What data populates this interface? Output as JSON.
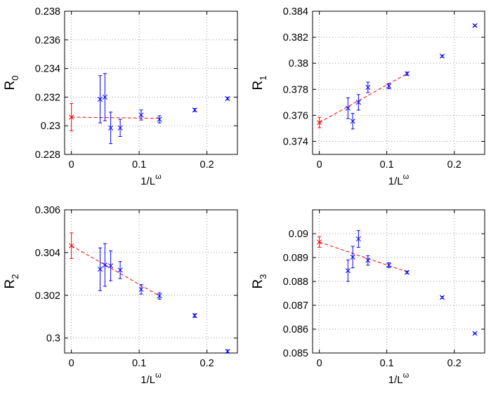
{
  "figure": {
    "background": "#ffffff"
  },
  "colors": {
    "data": "#0000ff",
    "extrapolation": "#ff0000",
    "fit": "#ff0000"
  },
  "chart_data": [
    {
      "type": "scatter",
      "ylabel_main": "R",
      "ylabel_sub": "0",
      "xlabel_main": "1/L",
      "xlabel_sup": "ω",
      "xlim": [
        -0.01,
        0.245
      ],
      "ylim": [
        0.228,
        0.238
      ],
      "xticks": [
        0,
        0.1,
        0.2
      ],
      "xtick_labels": [
        "0",
        "0.1",
        "0.2"
      ],
      "yticks": [
        0.228,
        0.23,
        0.232,
        0.234,
        0.236,
        0.238
      ],
      "ytick_labels": [
        "0.228",
        "0.23",
        "0.232",
        "0.234",
        "0.236",
        "0.238"
      ],
      "grid": true,
      "series": [
        {
          "name": "data",
          "marker": "x",
          "points": [
            {
              "x": 0.0424,
              "y": 0.23185,
              "err": 0.00165
            },
            {
              "x": 0.0495,
              "y": 0.232,
              "err": 0.00165
            },
            {
              "x": 0.058,
              "y": 0.22985,
              "err": 0.0011
            },
            {
              "x": 0.072,
              "y": 0.22985,
              "err": 0.0006
            },
            {
              "x": 0.103,
              "y": 0.23075,
              "err": 0.00035
            },
            {
              "x": 0.13,
              "y": 0.23045,
              "err": 0.00025
            },
            {
              "x": 0.182,
              "y": 0.2311,
              "err": 0.0001
            },
            {
              "x": 0.2305,
              "y": 0.2319,
              "err": 8e-05
            }
          ]
        },
        {
          "name": "extrapolation",
          "marker": "x",
          "points": [
            {
              "x": 0,
              "y": 0.2306,
              "err": 0.00095
            }
          ]
        }
      ],
      "fit_line": {
        "x": [
          0,
          0.13
        ],
        "y": [
          0.2306,
          0.23052
        ]
      }
    },
    {
      "type": "scatter",
      "ylabel_main": "R",
      "ylabel_sub": "1",
      "xlabel_main": "1/L",
      "xlabel_sup": "ω",
      "xlim": [
        -0.01,
        0.245
      ],
      "ylim": [
        0.373,
        0.384
      ],
      "xticks": [
        0,
        0.1,
        0.2
      ],
      "xtick_labels": [
        "0",
        "0.1",
        "0.2"
      ],
      "yticks": [
        0.374,
        0.376,
        0.378,
        0.38,
        0.382,
        0.384
      ],
      "ytick_labels": [
        "0.374",
        "0.376",
        "0.378",
        "0.38",
        "0.382",
        "0.384"
      ],
      "grid": true,
      "series": [
        {
          "name": "data",
          "marker": "x",
          "points": [
            {
              "x": 0.0424,
              "y": 0.37655,
              "err": 0.0008
            },
            {
              "x": 0.0495,
              "y": 0.37555,
              "err": 0.0006
            },
            {
              "x": 0.058,
              "y": 0.377,
              "err": 0.0006
            },
            {
              "x": 0.072,
              "y": 0.37815,
              "err": 0.0004
            },
            {
              "x": 0.103,
              "y": 0.37825,
              "err": 0.0002
            },
            {
              "x": 0.13,
              "y": 0.3792,
              "err": 0.00012
            },
            {
              "x": 0.182,
              "y": 0.38055,
              "err": 8e-05
            },
            {
              "x": 0.2305,
              "y": 0.3829,
              "err": 6e-05
            }
          ]
        },
        {
          "name": "extrapolation",
          "marker": "x",
          "points": [
            {
              "x": 0,
              "y": 0.37545,
              "err": 0.0004
            }
          ]
        }
      ],
      "fit_line": {
        "x": [
          0,
          0.13
        ],
        "y": [
          0.37545,
          0.3792
        ]
      }
    },
    {
      "type": "scatter",
      "ylabel_main": "R",
      "ylabel_sub": "2",
      "xlabel_main": "1/L",
      "xlabel_sup": "ω",
      "xlim": [
        -0.01,
        0.245
      ],
      "ylim": [
        0.2993,
        0.306
      ],
      "xticks": [
        0,
        0.1,
        0.2
      ],
      "xtick_labels": [
        "0",
        "0.1",
        "0.2"
      ],
      "yticks": [
        0.3,
        0.302,
        0.304,
        0.306
      ],
      "ytick_labels": [
        "0.3",
        "0.302",
        "0.304",
        "0.306"
      ],
      "grid": true,
      "series": [
        {
          "name": "data",
          "marker": "x",
          "points": [
            {
              "x": 0.0424,
              "y": 0.30322,
              "err": 0.001
            },
            {
              "x": 0.0495,
              "y": 0.30342,
              "err": 0.001
            },
            {
              "x": 0.058,
              "y": 0.30338,
              "err": 0.0007
            },
            {
              "x": 0.072,
              "y": 0.30318,
              "err": 0.0004
            },
            {
              "x": 0.103,
              "y": 0.30228,
              "err": 0.00022
            },
            {
              "x": 0.13,
              "y": 0.30197,
              "err": 0.00015
            },
            {
              "x": 0.182,
              "y": 0.30105,
              "err": 8e-05
            },
            {
              "x": 0.2305,
              "y": 0.29938,
              "err": 6e-05
            }
          ]
        },
        {
          "name": "extrapolation",
          "marker": "x",
          "points": [
            {
              "x": 0,
              "y": 0.30432,
              "err": 0.0006
            }
          ]
        }
      ],
      "fit_line": {
        "x": [
          0,
          0.13
        ],
        "y": [
          0.30432,
          0.30197
        ]
      }
    },
    {
      "type": "scatter",
      "ylabel_main": "R",
      "ylabel_sub": "3",
      "xlabel_main": "1/L",
      "xlabel_sup": "ω",
      "xlim": [
        -0.01,
        0.245
      ],
      "ylim": [
        0.085,
        0.091
      ],
      "xticks": [
        0,
        0.1,
        0.2
      ],
      "xtick_labels": [
        "0",
        "0.1",
        "0.2"
      ],
      "yticks": [
        0.085,
        0.086,
        0.087,
        0.088,
        0.089,
        0.09
      ],
      "ytick_labels": [
        "0.085",
        "0.086",
        "0.087",
        "0.088",
        "0.089",
        "0.09"
      ],
      "grid": true,
      "series": [
        {
          "name": "data",
          "marker": "x",
          "points": [
            {
              "x": 0.0424,
              "y": 0.08845,
              "err": 0.00045
            },
            {
              "x": 0.0495,
              "y": 0.08902,
              "err": 0.00045
            },
            {
              "x": 0.058,
              "y": 0.08978,
              "err": 0.00035
            },
            {
              "x": 0.072,
              "y": 0.08888,
              "err": 0.0002
            },
            {
              "x": 0.103,
              "y": 0.08868,
              "err": 0.0001
            },
            {
              "x": 0.13,
              "y": 0.08838,
              "err": 5e-05
            },
            {
              "x": 0.182,
              "y": 0.08733,
              "err": 4e-05
            },
            {
              "x": 0.2305,
              "y": 0.08582,
              "err": 3e-05
            }
          ]
        },
        {
          "name": "extrapolation",
          "marker": "x",
          "points": [
            {
              "x": 0,
              "y": 0.08965,
              "err": 0.00022
            }
          ]
        }
      ],
      "fit_line": {
        "x": [
          0,
          0.13
        ],
        "y": [
          0.08965,
          0.0884
        ]
      }
    }
  ]
}
